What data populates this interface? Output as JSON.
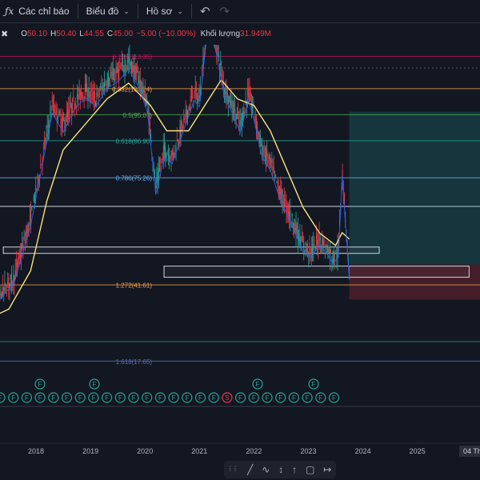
{
  "toolbar": {
    "indicators_label": "Các chỉ báo",
    "chart_label": "Biểu đồ",
    "profile_label": "Hồ sơ"
  },
  "ohlc": {
    "open_key": "O",
    "open": "50.10",
    "high_key": "H",
    "high": "50.40",
    "low_key": "L",
    "low": "44.55",
    "close_key": "C",
    "close": "45.00",
    "change": "−5.00 (−10.00%)",
    "volume_key": "Khối lượng",
    "volume": "31.949M"
  },
  "colors": {
    "background": "#131722",
    "down": "#f23645",
    "up": "#26a69a",
    "ma_long": "#f7e27c",
    "ma_short": "#2962ff",
    "fib": "#ef9a9a"
  },
  "icons": [
    "fx-icon",
    "chevron-down-icon",
    "undo-icon",
    "redo-icon",
    "close-x-icon",
    "grip-icon",
    "trend-line-icon",
    "path-icon",
    "price-range-icon",
    "long-position-icon",
    "frame-icon",
    "ruler-icon"
  ],
  "chart_data": {
    "type": "candlestick",
    "x_ticks": [
      "2018",
      "2019",
      "2020",
      "2021",
      "2022",
      "2023",
      "2024",
      "2025"
    ],
    "x_crosshair_label": "04 Th",
    "fib_levels": [
      {
        "ratio": "0.236",
        "price": 113.35,
        "label": "0.236(113.35)",
        "color": "#c2185b"
      },
      {
        "ratio": "0.382",
        "price": 103.24,
        "label": "0.382(103.24)",
        "color": "#f7a14b"
      },
      {
        "ratio": "0.5",
        "price": 95.07,
        "label": "0.5(95.07)",
        "color": "#4caf50"
      },
      {
        "ratio": "0.618",
        "price": 86.9,
        "label": "0.618(86.90)",
        "color": "#26a69a"
      },
      {
        "ratio": "0.786",
        "price": 75.26,
        "label": "0.786(75.26)",
        "color": "#64b5f6"
      },
      {
        "ratio": "1.272",
        "price": 41.61,
        "label": "1.272(41.61)",
        "color": "#f7a14b"
      },
      {
        "ratio": "1.618",
        "price": 17.65,
        "label": "1.618(17.65)",
        "color": "#5c6bc0"
      }
    ],
    "price_path": [
      {
        "t": 2017.0,
        "p": 35
      },
      {
        "t": 2017.3,
        "p": 38
      },
      {
        "t": 2017.6,
        "p": 44
      },
      {
        "t": 2017.9,
        "p": 62
      },
      {
        "t": 2018.1,
        "p": 80
      },
      {
        "t": 2018.3,
        "p": 98
      },
      {
        "t": 2018.5,
        "p": 92
      },
      {
        "t": 2018.7,
        "p": 99
      },
      {
        "t": 2018.9,
        "p": 103
      },
      {
        "t": 2019.1,
        "p": 100
      },
      {
        "t": 2019.3,
        "p": 106
      },
      {
        "t": 2019.5,
        "p": 108
      },
      {
        "t": 2019.7,
        "p": 112
      },
      {
        "t": 2019.9,
        "p": 106
      },
      {
        "t": 2020.05,
        "p": 98
      },
      {
        "t": 2020.2,
        "p": 72
      },
      {
        "t": 2020.35,
        "p": 84
      },
      {
        "t": 2020.5,
        "p": 82
      },
      {
        "t": 2020.7,
        "p": 92
      },
      {
        "t": 2020.9,
        "p": 102
      },
      {
        "t": 2021.0,
        "p": 100
      },
      {
        "t": 2021.15,
        "p": 125
      },
      {
        "t": 2021.3,
        "p": 118
      },
      {
        "t": 2021.45,
        "p": 104
      },
      {
        "t": 2021.6,
        "p": 98
      },
      {
        "t": 2021.75,
        "p": 92
      },
      {
        "t": 2021.9,
        "p": 102
      },
      {
        "t": 2022.0,
        "p": 96
      },
      {
        "t": 2022.15,
        "p": 84
      },
      {
        "t": 2022.3,
        "p": 80
      },
      {
        "t": 2022.45,
        "p": 72
      },
      {
        "t": 2022.6,
        "p": 66
      },
      {
        "t": 2022.75,
        "p": 60
      },
      {
        "t": 2022.9,
        "p": 54
      },
      {
        "t": 2023.05,
        "p": 52
      },
      {
        "t": 2023.2,
        "p": 56
      },
      {
        "t": 2023.35,
        "p": 53
      },
      {
        "t": 2023.45,
        "p": 50
      },
      {
        "t": 2023.55,
        "p": 52
      },
      {
        "t": 2023.62,
        "p": 78
      },
      {
        "t": 2023.7,
        "p": 58
      },
      {
        "t": 2023.75,
        "p": 45
      }
    ],
    "ma_long": [
      {
        "t": 2017.0,
        "p": 30
      },
      {
        "t": 2017.5,
        "p": 34
      },
      {
        "t": 2017.9,
        "p": 46
      },
      {
        "t": 2018.2,
        "p": 68
      },
      {
        "t": 2018.5,
        "p": 84
      },
      {
        "t": 2018.9,
        "p": 92
      },
      {
        "t": 2019.3,
        "p": 100
      },
      {
        "t": 2019.7,
        "p": 105
      },
      {
        "t": 2020.1,
        "p": 98
      },
      {
        "t": 2020.4,
        "p": 90
      },
      {
        "t": 2020.8,
        "p": 90
      },
      {
        "t": 2021.1,
        "p": 98
      },
      {
        "t": 2021.4,
        "p": 106
      },
      {
        "t": 2021.7,
        "p": 100
      },
      {
        "t": 2022.0,
        "p": 98
      },
      {
        "t": 2022.3,
        "p": 90
      },
      {
        "t": 2022.6,
        "p": 78
      },
      {
        "t": 2022.9,
        "p": 66
      },
      {
        "t": 2023.2,
        "p": 58
      },
      {
        "t": 2023.5,
        "p": 54
      },
      {
        "t": 2023.62,
        "p": 58
      },
      {
        "t": 2023.75,
        "p": 56
      }
    ],
    "zones": [
      {
        "name": "support-box-1",
        "t0": 2017.4,
        "t1": 2024.3,
        "p0": 51.5,
        "p1": 53.5
      },
      {
        "name": "support-box-2",
        "t0": 2020.35,
        "t1": 2025.95,
        "p0": 44,
        "p1": 47.5
      }
    ],
    "long_position": {
      "t0": 2023.75,
      "t1": 2026.2,
      "entry": 48,
      "target": 96,
      "stop": 37
    },
    "volume": 31.949,
    "volume_unit": "M"
  }
}
